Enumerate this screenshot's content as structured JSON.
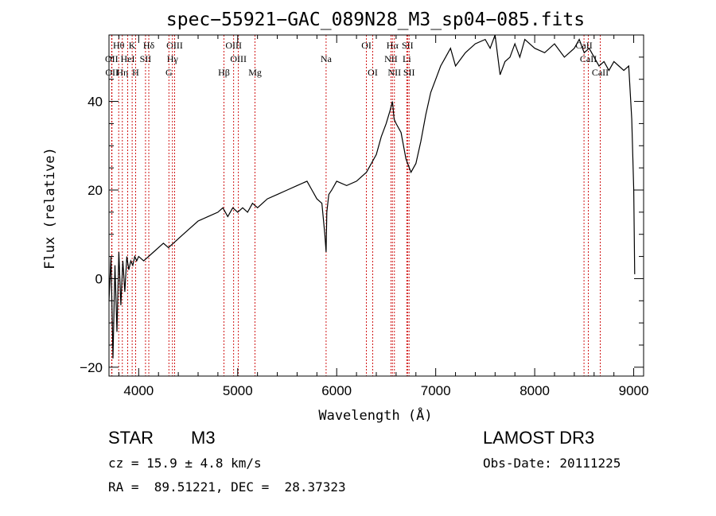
{
  "chart_data": {
    "type": "line",
    "title": "spec−55921−GAC_089N28_M3_sp04−085.fits",
    "xlabel": "Wavelength (Å)",
    "ylabel": "Flux (relative)",
    "xlim": [
      3700,
      9100
    ],
    "ylim": [
      -22,
      55
    ],
    "x_ticks": [
      4000,
      5000,
      6000,
      7000,
      8000,
      9000
    ],
    "x_tick_labels": [
      "4000",
      "5000",
      "6000",
      "7000",
      "8000",
      "9000"
    ],
    "y_ticks": [
      -20,
      0,
      20,
      40
    ],
    "y_tick_labels": [
      "−20",
      "0",
      "20",
      "40"
    ],
    "series": [
      {
        "name": "spectrum",
        "x": [
          3700,
          3720,
          3740,
          3760,
          3780,
          3800,
          3820,
          3840,
          3860,
          3880,
          3900,
          3920,
          3940,
          3960,
          3980,
          4000,
          4050,
          4100,
          4150,
          4200,
          4250,
          4300,
          4350,
          4400,
          4450,
          4500,
          4600,
          4700,
          4800,
          4850,
          4900,
          4950,
          5000,
          5050,
          5100,
          5150,
          5200,
          5300,
          5400,
          5500,
          5600,
          5700,
          5750,
          5800,
          5850,
          5880,
          5893,
          5900,
          5920,
          5950,
          6000,
          6100,
          6200,
          6300,
          6350,
          6400,
          6450,
          6500,
          6540,
          6563,
          6580,
          6600,
          6650,
          6700,
          6750,
          6800,
          6850,
          6900,
          6950,
          7000,
          7050,
          7100,
          7150,
          7200,
          7300,
          7400,
          7500,
          7550,
          7600,
          7650,
          7700,
          7750,
          7800,
          7850,
          7900,
          8000,
          8100,
          8200,
          8300,
          8400,
          8450,
          8500,
          8550,
          8600,
          8650,
          8700,
          8750,
          8800,
          8850,
          8900,
          8950,
          8980,
          9000,
          9010
        ],
        "y": [
          -5,
          5,
          -18,
          3,
          -12,
          6,
          -6,
          4,
          -3,
          5,
          2,
          4,
          3,
          5,
          4,
          5,
          4,
          5,
          6,
          7,
          8,
          7,
          8,
          9,
          10,
          11,
          13,
          14,
          15,
          16,
          14,
          16,
          15,
          16,
          15,
          17,
          16,
          18,
          19,
          20,
          21,
          22,
          20,
          18,
          17,
          10,
          6,
          15,
          19,
          20,
          22,
          21,
          22,
          24,
          26,
          28,
          32,
          35,
          38,
          40,
          36,
          35,
          33,
          27,
          24,
          26,
          31,
          37,
          42,
          45,
          48,
          50,
          52,
          48,
          51,
          53,
          54,
          52,
          55,
          46,
          49,
          50,
          53,
          50,
          54,
          52,
          51,
          53,
          50,
          52,
          54,
          51,
          52,
          50,
          48,
          49,
          47,
          49,
          48,
          47,
          48,
          36,
          20,
          1
        ]
      }
    ],
    "line_markers": [
      {
        "label": "Hθ",
        "wavelength": 3798,
        "row": 0
      },
      {
        "label": "OII",
        "wavelength": 3727,
        "row": 1
      },
      {
        "label": "OII",
        "wavelength": 3730,
        "row": 2
      },
      {
        "label": "Hη",
        "wavelength": 3835,
        "row": 2
      },
      {
        "label": "HeI",
        "wavelength": 3889,
        "row": 1
      },
      {
        "label": "K",
        "wavelength": 3934,
        "row": 0
      },
      {
        "label": "H",
        "wavelength": 3969,
        "row": 2
      },
      {
        "label": "SII",
        "wavelength": 4069,
        "row": 1
      },
      {
        "label": "Hδ",
        "wavelength": 4102,
        "row": 0
      },
      {
        "label": "OIII",
        "wavelength": 4363,
        "row": 0
      },
      {
        "label": "Hγ",
        "wavelength": 4341,
        "row": 1
      },
      {
        "label": "G",
        "wavelength": 4305,
        "row": 2
      },
      {
        "label": "Hβ",
        "wavelength": 4861,
        "row": 2
      },
      {
        "label": "OIII",
        "wavelength": 4959,
        "row": 0
      },
      {
        "label": "OIII",
        "wavelength": 5007,
        "row": 1
      },
      {
        "label": "Mg",
        "wavelength": 5175,
        "row": 2
      },
      {
        "label": "Na",
        "wavelength": 5893,
        "row": 1
      },
      {
        "label": "OI",
        "wavelength": 6300,
        "row": 0
      },
      {
        "label": "OI",
        "wavelength": 6364,
        "row": 2
      },
      {
        "label": "Hα",
        "wavelength": 6563,
        "row": 0
      },
      {
        "label": "NII",
        "wavelength": 6548,
        "row": 1
      },
      {
        "label": "NII",
        "wavelength": 6583,
        "row": 2
      },
      {
        "label": "SII",
        "wavelength": 6716,
        "row": 0
      },
      {
        "label": "Li",
        "wavelength": 6708,
        "row": 1
      },
      {
        "label": "SII",
        "wavelength": 6731,
        "row": 2
      },
      {
        "label": "CaII",
        "wavelength": 8498,
        "row": 0
      },
      {
        "label": "CaII",
        "wavelength": 8542,
        "row": 1
      },
      {
        "label": "CaII",
        "wavelength": 8662,
        "row": 2
      }
    ]
  },
  "info": {
    "object_class": "STAR",
    "subclass": "M3",
    "cz": "cz = 15.9 ± 4.8 km/s",
    "radec": "RA =  89.51221, DEC =  28.37323",
    "survey": "LAMOST DR3",
    "obs_date": "Obs-Date: 20111225"
  },
  "colors": {
    "spectrum": "#000000",
    "marker_lines": "#cc0000",
    "axes": "#000000"
  }
}
